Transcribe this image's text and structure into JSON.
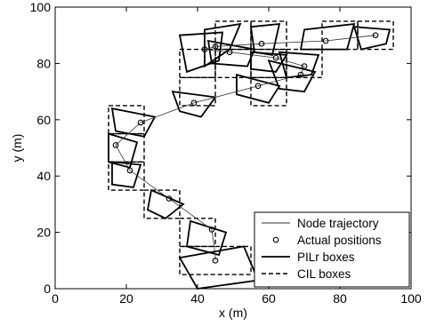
{
  "chart_data": {
    "type": "scatter",
    "xlabel": "x (m)",
    "ylabel": "y (m)",
    "xlim": [
      0,
      100
    ],
    "ylim": [
      0,
      100
    ],
    "xticks": [
      0,
      20,
      40,
      60,
      80,
      100
    ],
    "yticks": [
      0,
      20,
      40,
      60,
      80,
      100
    ],
    "grid": false,
    "legend_position": "bottom-right",
    "legend": [
      {
        "label": "Node trajectory",
        "style": "thin-line"
      },
      {
        "label": "Actual positions",
        "style": "circle-marker"
      },
      {
        "label": "PILr boxes",
        "style": "thick-line"
      },
      {
        "label": "CIL boxes",
        "style": "dashed-line"
      }
    ],
    "trajectory": [
      [
        45,
        10
      ],
      [
        45,
        12
      ],
      [
        44,
        21
      ],
      [
        32,
        32
      ],
      [
        21,
        42
      ],
      [
        17,
        51
      ],
      [
        24,
        59
      ],
      [
        39,
        66
      ],
      [
        57,
        72
      ],
      [
        69,
        76
      ],
      [
        70,
        79
      ],
      [
        62,
        82
      ],
      [
        49,
        84
      ],
      [
        42,
        85
      ],
      [
        45,
        86
      ],
      [
        58,
        87
      ],
      [
        76,
        88
      ],
      [
        90,
        90
      ]
    ],
    "actual_positions": [
      [
        45,
        10
      ],
      [
        44,
        21
      ],
      [
        32,
        32
      ],
      [
        21,
        42
      ],
      [
        17,
        51
      ],
      [
        24,
        59
      ],
      [
        39,
        66
      ],
      [
        57,
        72
      ],
      [
        69,
        76
      ],
      [
        70,
        79
      ],
      [
        62,
        82
      ],
      [
        49,
        84
      ],
      [
        42,
        85
      ],
      [
        45,
        86
      ],
      [
        58,
        87
      ],
      [
        76,
        88
      ],
      [
        90,
        90
      ]
    ],
    "pilr_boxes": [
      [
        [
          35,
          11
        ],
        [
          53,
          15
        ],
        [
          57,
          3
        ],
        [
          40,
          0
        ]
      ],
      [
        [
          38,
          24
        ],
        [
          48,
          20
        ],
        [
          46,
          12
        ],
        [
          37,
          15
        ]
      ],
      [
        [
          27,
          35
        ],
        [
          36,
          30
        ],
        [
          31,
          25
        ],
        [
          26,
          28
        ]
      ],
      [
        [
          16,
          45
        ],
        [
          24,
          44
        ],
        [
          22,
          36
        ],
        [
          16,
          37
        ]
      ],
      [
        [
          15,
          55
        ],
        [
          23,
          52
        ],
        [
          21,
          43
        ],
        [
          15,
          45
        ]
      ],
      [
        [
          16,
          64
        ],
        [
          28,
          61
        ],
        [
          25,
          54
        ],
        [
          17,
          56
        ]
      ],
      [
        [
          33,
          70
        ],
        [
          45,
          68
        ],
        [
          41,
          61
        ],
        [
          35,
          63
        ]
      ],
      [
        [
          51,
          76
        ],
        [
          63,
          72
        ],
        [
          60,
          66
        ],
        [
          51,
          69
        ]
      ],
      [
        [
          60,
          81
        ],
        [
          73,
          77
        ],
        [
          70,
          70
        ],
        [
          63,
          71
        ]
      ],
      [
        [
          63,
          84
        ],
        [
          74,
          83
        ],
        [
          72,
          76
        ],
        [
          65,
          75
        ]
      ],
      [
        [
          55,
          84
        ],
        [
          65,
          83
        ],
        [
          62,
          77
        ],
        [
          55,
          78
        ]
      ],
      [
        [
          43,
          88
        ],
        [
          56,
          85
        ],
        [
          54,
          79
        ],
        [
          44,
          80
        ]
      ],
      [
        [
          35,
          90
        ],
        [
          47,
          91
        ],
        [
          46,
          81
        ],
        [
          37,
          77
        ]
      ],
      [
        [
          42,
          92
        ],
        [
          52,
          94
        ],
        [
          49,
          85
        ],
        [
          42,
          79
        ]
      ],
      [
        [
          55,
          93
        ],
        [
          63,
          94
        ],
        [
          61,
          83
        ],
        [
          56,
          84
        ]
      ],
      [
        [
          70,
          92
        ],
        [
          84,
          94
        ],
        [
          82,
          85
        ],
        [
          69,
          85
        ]
      ],
      [
        [
          84,
          93
        ],
        [
          94,
          92
        ],
        [
          93,
          87
        ],
        [
          86,
          85
        ]
      ]
    ],
    "cil_boxes": [
      [
        [
          35,
          15
        ],
        [
          55,
          15
        ],
        [
          55,
          5
        ],
        [
          35,
          5
        ]
      ],
      [
        [
          35,
          25
        ],
        [
          45,
          25
        ],
        [
          45,
          15
        ],
        [
          35,
          15
        ]
      ],
      [
        [
          25,
          35
        ],
        [
          35,
          35
        ],
        [
          35,
          25
        ],
        [
          25,
          25
        ]
      ],
      [
        [
          15,
          45
        ],
        [
          25,
          45
        ],
        [
          25,
          35
        ],
        [
          15,
          35
        ]
      ],
      [
        [
          15,
          55
        ],
        [
          25,
          55
        ],
        [
          25,
          45
        ],
        [
          15,
          45
        ]
      ],
      [
        [
          15,
          65
        ],
        [
          25,
          65
        ],
        [
          25,
          55
        ],
        [
          15,
          55
        ]
      ],
      [
        [
          35,
          75
        ],
        [
          45,
          75
        ],
        [
          45,
          65
        ],
        [
          35,
          65
        ]
      ],
      [
        [
          55,
          75
        ],
        [
          65,
          75
        ],
        [
          65,
          65
        ],
        [
          55,
          65
        ]
      ],
      [
        [
          65,
          85
        ],
        [
          75,
          85
        ],
        [
          75,
          75
        ],
        [
          65,
          75
        ]
      ],
      [
        [
          55,
          85
        ],
        [
          65,
          85
        ],
        [
          65,
          75
        ],
        [
          55,
          75
        ]
      ],
      [
        [
          45,
          85
        ],
        [
          55,
          85
        ],
        [
          55,
          75
        ],
        [
          45,
          75
        ]
      ],
      [
        [
          35,
          85
        ],
        [
          45,
          85
        ],
        [
          45,
          75
        ],
        [
          35,
          75
        ]
      ],
      [
        [
          45,
          95
        ],
        [
          55,
          95
        ],
        [
          55,
          85
        ],
        [
          45,
          85
        ]
      ],
      [
        [
          55,
          95
        ],
        [
          65,
          95
        ],
        [
          65,
          85
        ],
        [
          55,
          85
        ]
      ],
      [
        [
          75,
          95
        ],
        [
          85,
          95
        ],
        [
          85,
          85
        ],
        [
          75,
          85
        ]
      ],
      [
        [
          85,
          95
        ],
        [
          95,
          95
        ],
        [
          95,
          85
        ],
        [
          85,
          85
        ]
      ]
    ]
  }
}
